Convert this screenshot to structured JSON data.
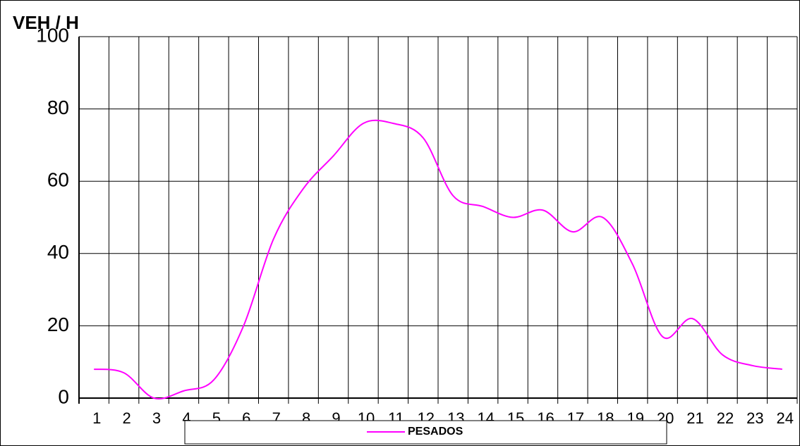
{
  "chart_data": {
    "type": "line",
    "title": "VEH / H",
    "categories": [
      "1",
      "2",
      "3",
      "4",
      "5",
      "6",
      "7",
      "8",
      "9",
      "10",
      "11",
      "12",
      "13",
      "14",
      "15",
      "16",
      "17",
      "18",
      "19",
      "20",
      "21",
      "22",
      "23",
      "24"
    ],
    "series": [
      {
        "name": "PESADOS",
        "color": "#ff00ff",
        "values": [
          8,
          7,
          0,
          2,
          5,
          20,
          44,
          58,
          67,
          76,
          76,
          72,
          56,
          53,
          50,
          52,
          46,
          50,
          37,
          17,
          22,
          12,
          9,
          8
        ]
      }
    ],
    "ylim": [
      0,
      100
    ],
    "yticks": [
      0,
      20,
      40,
      60,
      80,
      100
    ],
    "grid": true,
    "legend": "bottom"
  }
}
